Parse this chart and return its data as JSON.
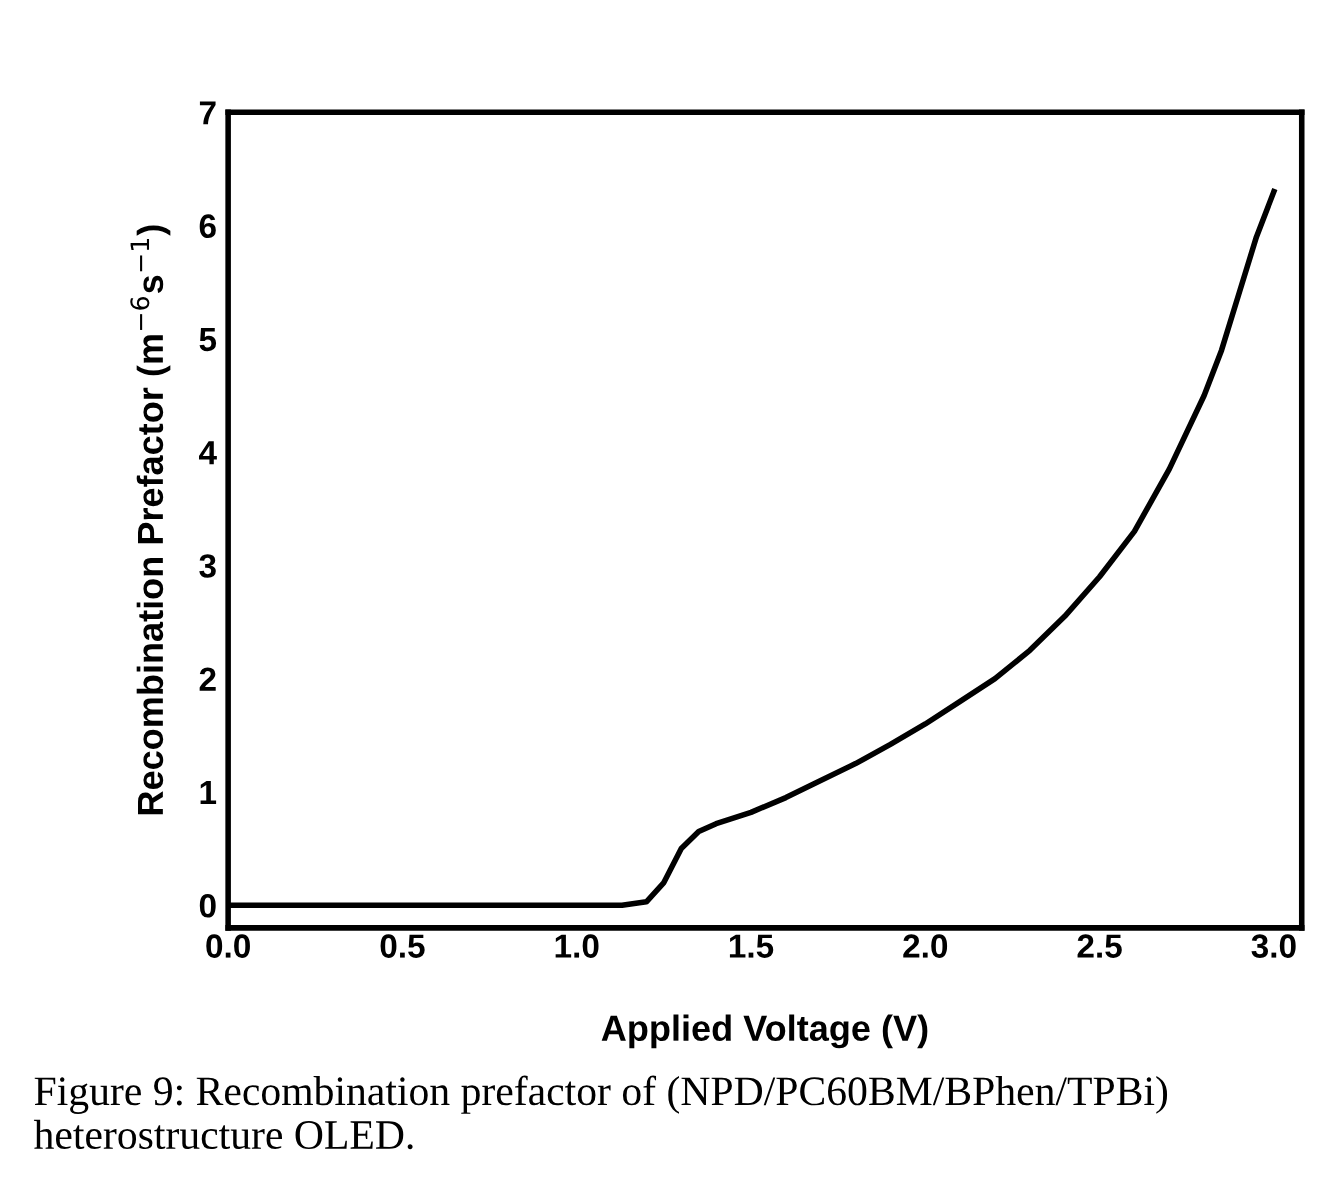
{
  "chart_data": {
    "type": "line",
    "xlabel": "Applied Voltage (V)",
    "ylabel": "Recombination Prefactor (m$^{−6}$s$^{−1}$)",
    "annotations": [
      "Figure 9: Recombination prefactor of (NPD/PC60BM/BPhen/TPBi) heterostructure OLED."
    ],
    "series": [
      {
        "color": "#000000",
        "x": [
          0.0,
          0.5,
          1.0,
          1.13,
          1.2,
          1.25,
          1.3,
          1.35,
          1.4,
          1.5,
          1.6,
          1.7,
          1.8,
          1.9,
          2.0,
          2.1,
          2.2,
          2.3,
          2.4,
          2.5,
          2.6,
          2.7,
          2.8,
          2.85,
          2.9,
          2.95,
          3.0
        ],
        "values": [
          0,
          0,
          0,
          0,
          0.03,
          0.2,
          0.5,
          0.65,
          0.72,
          0.82,
          0.95,
          1.1,
          1.25,
          1.42,
          1.6,
          1.8,
          2.0,
          2.25,
          2.55,
          2.9,
          3.3,
          3.85,
          4.5,
          4.9,
          5.4,
          5.9,
          6.3
        ]
      }
    ],
    "xlim": [
      0,
      3.08
    ],
    "ylim": [
      -0.2,
      7
    ],
    "xticks": [
      {
        "value": 0,
        "label": "0.0"
      },
      0.5,
      {
        "value": 1,
        "label": "1.0"
      },
      1.5,
      {
        "value": 2,
        "label": "2.0"
      },
      2.5,
      {
        "value": 3,
        "label": "3.0"
      }
    ],
    "yticks": [
      0,
      1,
      2,
      3,
      4,
      5,
      6,
      7
    ],
    "grid": false,
    "legend": false,
    "marker": "none",
    "line_style": "solid"
  }
}
